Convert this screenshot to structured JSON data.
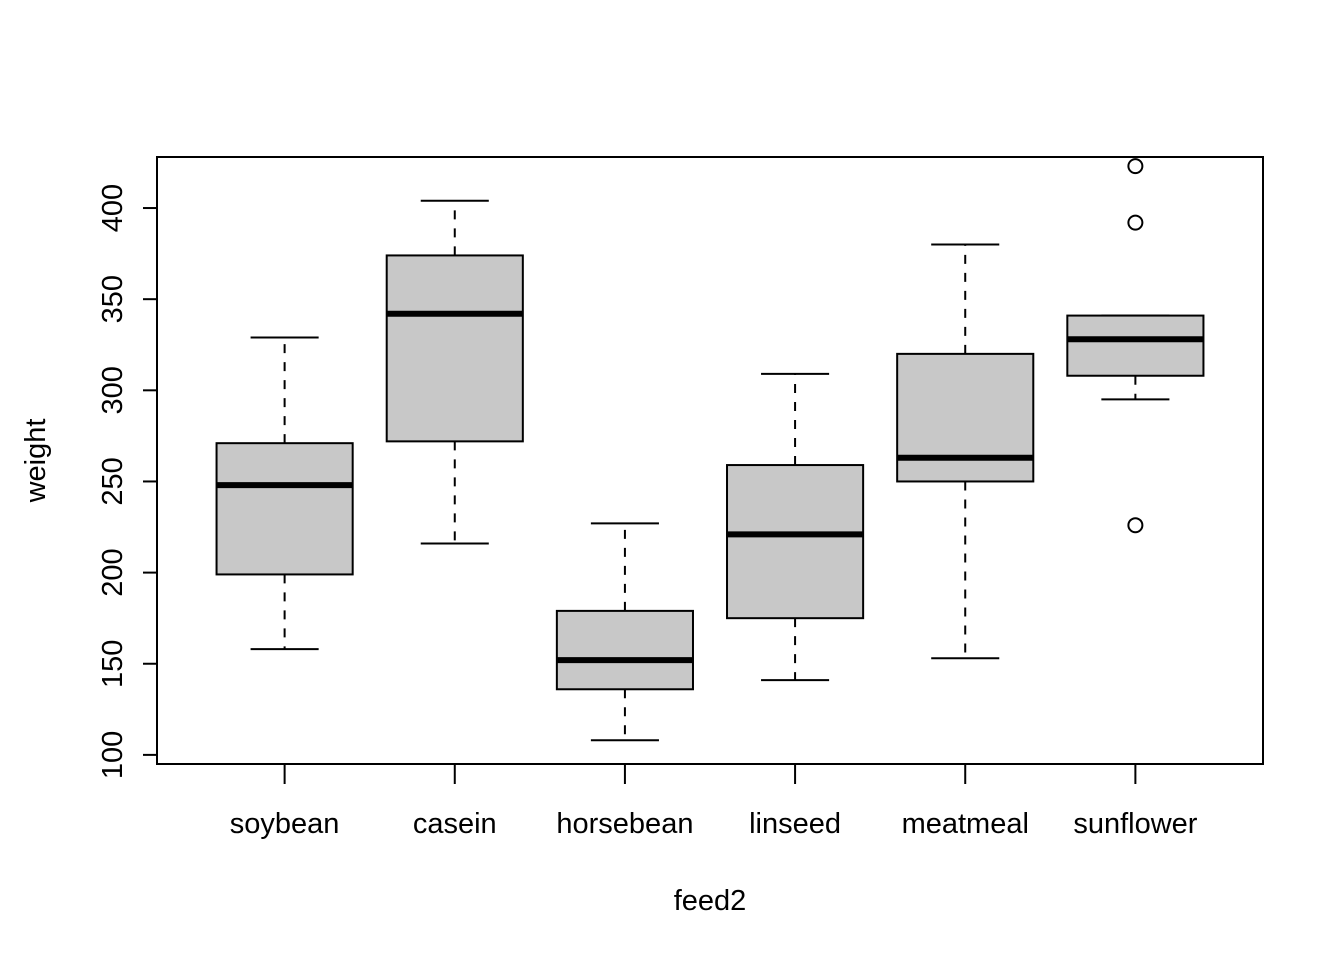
{
  "chart_data": {
    "type": "box",
    "title": "",
    "xlabel": "feed2",
    "ylabel": "weight",
    "ylim": [
      95,
      428
    ],
    "yticks": [
      100,
      150,
      200,
      250,
      300,
      350,
      400
    ],
    "ytick_labels": [
      "100",
      "150",
      "200",
      "250",
      "300",
      "350",
      "400"
    ],
    "grid": false,
    "legend": "none",
    "box_fill": "#c8c8c8",
    "categories": [
      "soybean",
      "casein",
      "horsebean",
      "linseed",
      "meatmeal",
      "sunflower"
    ],
    "boxes": [
      {
        "category": "soybean",
        "min": 158,
        "q1": 199,
        "median": 248,
        "q3": 271,
        "max": 329,
        "outliers": []
      },
      {
        "category": "casein",
        "min": 216,
        "q1": 272,
        "median": 342,
        "q3": 374,
        "max": 404,
        "outliers": []
      },
      {
        "category": "horsebean",
        "min": 108,
        "q1": 136,
        "median": 152,
        "q3": 179,
        "max": 227,
        "outliers": []
      },
      {
        "category": "linseed",
        "min": 141,
        "q1": 175,
        "median": 221,
        "q3": 259,
        "max": 309,
        "outliers": []
      },
      {
        "category": "meatmeal",
        "min": 153,
        "q1": 250,
        "median": 263,
        "q3": 320,
        "max": 380,
        "outliers": []
      },
      {
        "category": "sunflower",
        "min": 295,
        "q1": 308,
        "median": 328,
        "q3": 341,
        "max": 341,
        "outliers": [
          423,
          392,
          226
        ]
      }
    ]
  }
}
